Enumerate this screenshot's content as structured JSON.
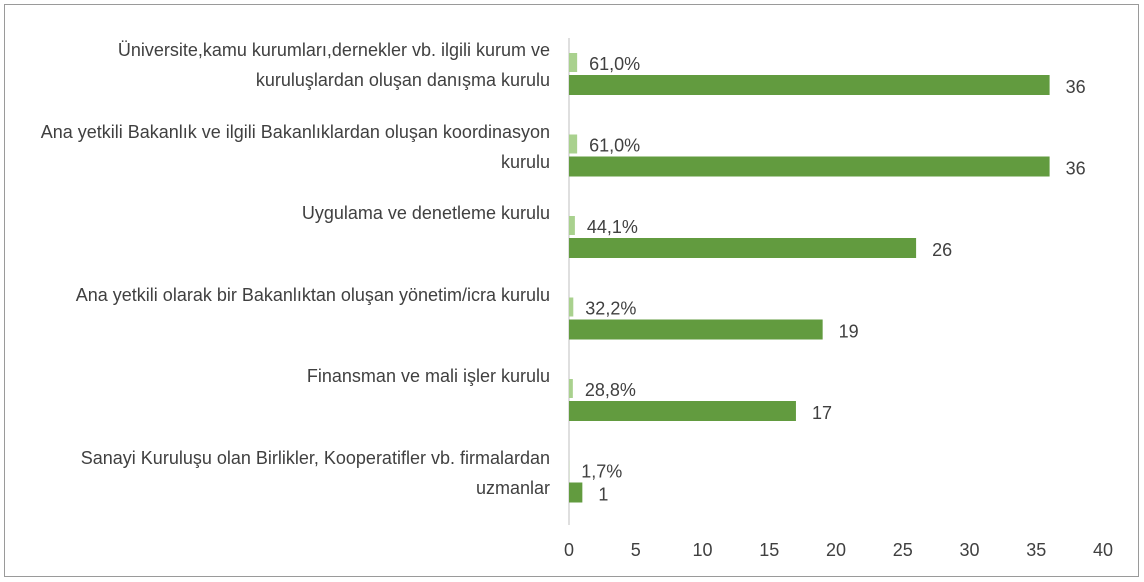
{
  "chart_data": {
    "type": "bar",
    "orientation": "horizontal",
    "categories": [
      "Üniversite,kamu kurumları,dernekler vb. ilgili kurum ve kuruluşlardan oluşan danışma kurulu",
      "Ana yetkili Bakanlık ve ilgili Bakanlıklardan oluşan koordinasyon kurulu",
      "Uygulama ve denetleme kurulu",
      "Ana yetkili olarak bir Bakanlıktan oluşan yönetim/icra kurulu",
      "Finansman ve mali işler kurulu",
      "Sanayi Kuruluşu olan Birlikler, Kooperatifler vb. firmalardan uzmanlar"
    ],
    "series": [
      {
        "color": "#a9d18e",
        "values": [
          0.61,
          0.61,
          0.441,
          0.322,
          0.288,
          0.017
        ],
        "value_labels": [
          "61,0%",
          "61,0%",
          "44,1%",
          "32,2%",
          "28,8%",
          "1,7%"
        ]
      },
      {
        "color": "#629b3f",
        "values": [
          36,
          36,
          26,
          19,
          17,
          1
        ]
      }
    ],
    "xlim": [
      0,
      40
    ],
    "xticks": [
      0,
      5,
      10,
      15,
      20,
      25,
      30,
      35,
      40
    ],
    "grid": false
  }
}
